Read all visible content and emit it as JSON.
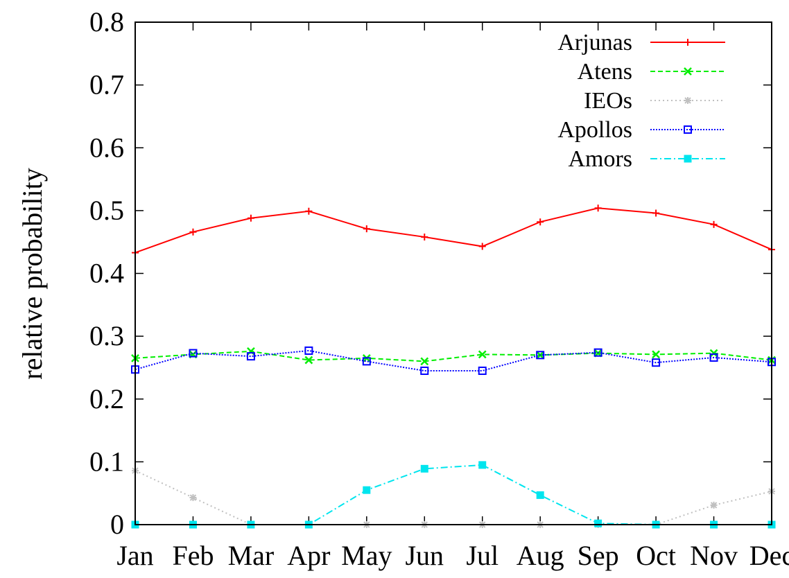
{
  "chart_data": {
    "type": "line",
    "title": "",
    "xlabel": "",
    "ylabel": "relative probability",
    "categories": [
      "Jan",
      "Feb",
      "Mar",
      "Apr",
      "May",
      "Jun",
      "Jul",
      "Aug",
      "Sep",
      "Oct",
      "Nov",
      "Dec"
    ],
    "ylim": [
      0,
      0.8
    ],
    "yticks": [
      "0",
      "0.1",
      "0.2",
      "0.3",
      "0.4",
      "0.5",
      "0.6",
      "0.7",
      "0.8"
    ],
    "grid": false,
    "legend_position": "top-right",
    "series": [
      {
        "name": "Arjunas",
        "color": "#ff0000",
        "marker": "plus",
        "dash": "solid",
        "values": [
          0.433,
          0.466,
          0.488,
          0.499,
          0.471,
          0.458,
          0.443,
          0.482,
          0.504,
          0.496,
          0.478,
          0.438
        ]
      },
      {
        "name": "Atens",
        "color": "#00ee00",
        "marker": "cross",
        "dash": "dashed",
        "values": [
          0.265,
          0.271,
          0.276,
          0.262,
          0.265,
          0.26,
          0.271,
          0.27,
          0.273,
          0.271,
          0.273,
          0.262
        ]
      },
      {
        "name": "IEOs",
        "color": "#c0c0c0",
        "marker": "star",
        "dash": "dotted",
        "values": [
          0.086,
          0.043,
          0.0,
          0.0,
          0.0,
          0.0,
          0.0,
          0.0,
          0.0,
          0.0,
          0.031,
          0.053
        ]
      },
      {
        "name": "Apollos",
        "color": "#0000ff",
        "marker": "open-square",
        "dash": "finedot",
        "values": [
          0.247,
          0.273,
          0.268,
          0.277,
          0.26,
          0.245,
          0.245,
          0.27,
          0.274,
          0.258,
          0.266,
          0.259
        ]
      },
      {
        "name": "Amors",
        "color": "#00e5ee",
        "marker": "filled-square",
        "dash": "dashdot",
        "values": [
          0.0,
          0.0,
          0.0,
          0.0,
          0.055,
          0.089,
          0.095,
          0.047,
          0.002,
          0.0,
          0.0,
          0.0
        ]
      }
    ]
  }
}
